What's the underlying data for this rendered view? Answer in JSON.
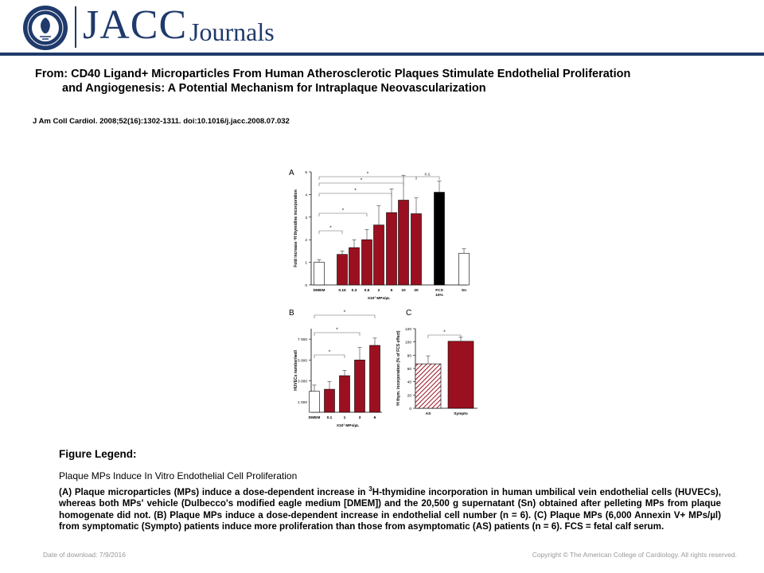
{
  "header": {
    "logo_text": "JACC",
    "journals_text": "Journals",
    "seal_text": "AMERICAN COLLEGE OF CARDIOLOGY",
    "brand_color": "#1f3a6b"
  },
  "article": {
    "from_line1": "From: CD40 Ligand+ Microparticles From Human Atherosclerotic Plaques Stimulate Endothelial Proliferation",
    "from_line2": "and Angiogenesis: A Potential Mechanism for Intraplaque Neovascularization",
    "citation": "J Am Coll Cardiol. 2008;52(16):1302-1311. doi:10.1016/j.jacc.2008.07.032"
  },
  "legend": {
    "heading": "Figure Legend:",
    "title": "Plaque MPs Induce In Vitro Endothelial Cell Proliferation",
    "text_a_pre": "(A) Plaque microparticles (MPs) induce a dose-dependent  increase in ",
    "sup": "3",
    "text_rest": "H-thymidine incorporation in human umbilical vein endothelial cells (HUVECs), whereas both MPs' vehicle (Dulbecco's modified eagle medium [DMEM]) and the 20,500 g supernatant (Sn) obtained after pelleting MPs from plaque homogenate did not. (B) Plaque MPs induce a dose-dependent  increase in endothelial cell number (n = 6). (C) Plaque MPs (6,000 Annexin V+ MPs/µl) from symptomatic (Sympto) patients induce more proliferation than those from asymptomatic (AS) patients (n = 6). FCS = fetal calf serum."
  },
  "footer": {
    "date": "Date of download:  7/9/2016",
    "copyright": "Copyright © The American College of Cardiology. All rights reserved."
  },
  "chart_data": [
    {
      "panel": "A",
      "type": "bar",
      "ylabel": "Fold increase ³H thymidine incorporation",
      "xlabel": "X10³ MPs/µL",
      "ylim": [
        0,
        5
      ],
      "yticks": [
        0,
        1,
        2,
        3,
        4,
        5
      ],
      "categories": [
        "DMEM",
        "0.15",
        "0.3",
        "0.6",
        "2",
        "6",
        "10",
        "20",
        "FCS 10%",
        "Sn"
      ],
      "values": [
        1.0,
        1.35,
        1.65,
        2.0,
        2.65,
        3.2,
        3.75,
        3.15,
        4.1,
        1.4
      ],
      "errors": [
        0.12,
        0.15,
        0.35,
        0.45,
        0.85,
        1.05,
        1.1,
        0.7,
        0.5,
        0.2
      ],
      "fills": [
        "#ffffff",
        "#9b1020",
        "#9b1020",
        "#9b1020",
        "#9b1020",
        "#9b1020",
        "#9b1020",
        "#9b1020",
        "#000000",
        "#ffffff"
      ],
      "annotations": [
        "*",
        "*",
        "*",
        "*",
        "*",
        "n.s."
      ]
    },
    {
      "panel": "B",
      "type": "bar",
      "ylabel": "HUVECs number/well",
      "xlabel": "X10³ MPs/µL",
      "ylim": [
        0,
        8000
      ],
      "yticks": [
        1000,
        3000,
        5000,
        7000
      ],
      "ytick_labels": [
        "1 000",
        "3 000",
        "5 000",
        "7 000"
      ],
      "categories": [
        "DMEM",
        "0.1",
        "1",
        "3",
        "6"
      ],
      "values": [
        2000,
        2200,
        3500,
        5000,
        6400
      ],
      "errors": [
        600,
        750,
        500,
        1200,
        700
      ],
      "fills": [
        "#ffffff",
        "#9b1020",
        "#9b1020",
        "#9b1020",
        "#9b1020"
      ],
      "annotations": [
        "*",
        "*",
        "*"
      ]
    },
    {
      "panel": "C",
      "type": "bar",
      "ylabel": "³H thym. incorporation (% of FCS effect)",
      "ylim": [
        0,
        120
      ],
      "yticks": [
        0,
        20,
        40,
        60,
        80,
        100,
        120
      ],
      "categories": [
        "AS",
        "Sympto"
      ],
      "values": [
        67,
        101
      ],
      "errors": [
        12,
        6
      ],
      "fills": [
        "hatch",
        "#9b1020"
      ],
      "annotations": [
        "*"
      ]
    }
  ]
}
